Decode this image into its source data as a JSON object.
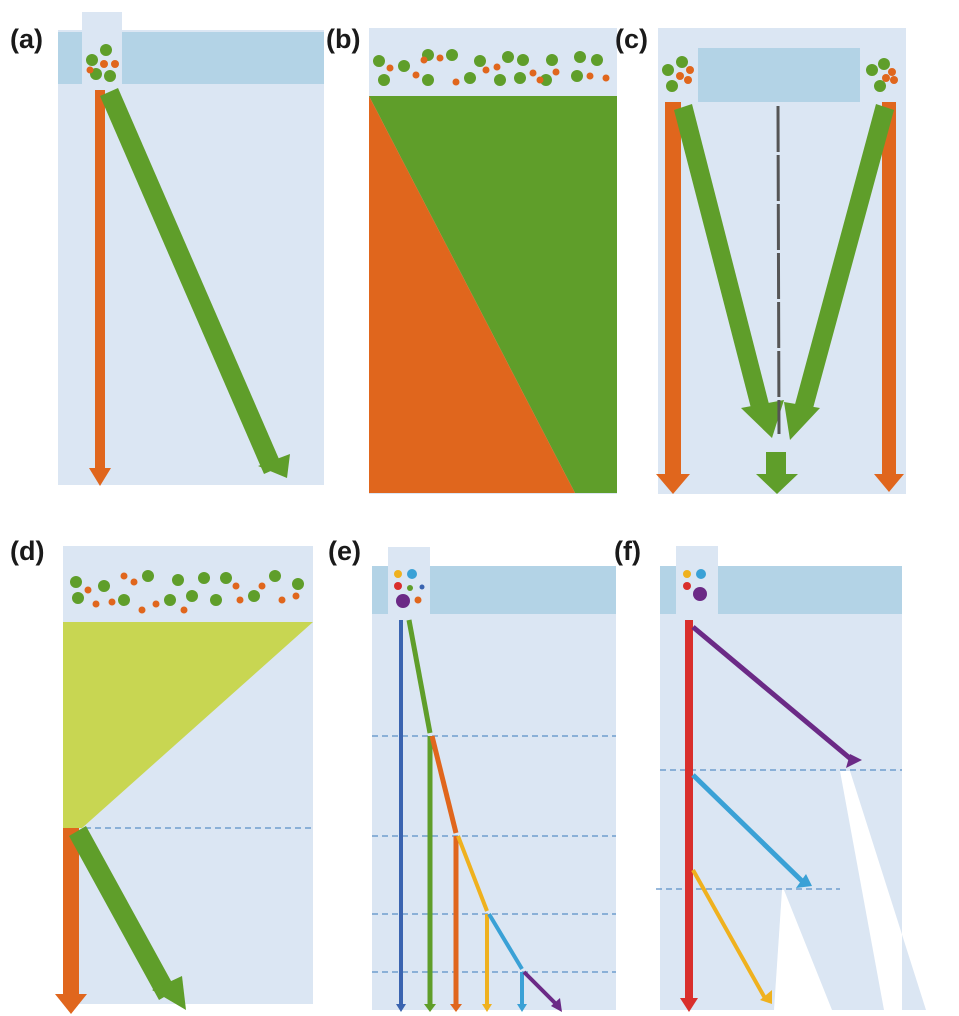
{
  "panels": [
    {
      "id": "a",
      "label": "(a)"
    },
    {
      "id": "b",
      "label": "(b)"
    },
    {
      "id": "c",
      "label": "(c)"
    },
    {
      "id": "d",
      "label": "(d)"
    },
    {
      "id": "e",
      "label": "(e)"
    },
    {
      "id": "f",
      "label": "(f)"
    }
  ],
  "colors": {
    "background": "#dbe6f3",
    "water_band": "#b3d3e6",
    "orange": "#e0661d",
    "green": "#5f9e2a",
    "lime": "#c8d652",
    "blue": "#3a64b0",
    "sky": "#3aa1d6",
    "yellow": "#efb11e",
    "red": "#d92f2c",
    "purple": "#6b2a86",
    "dash": "#5a8fc6",
    "gray": "#555555"
  }
}
